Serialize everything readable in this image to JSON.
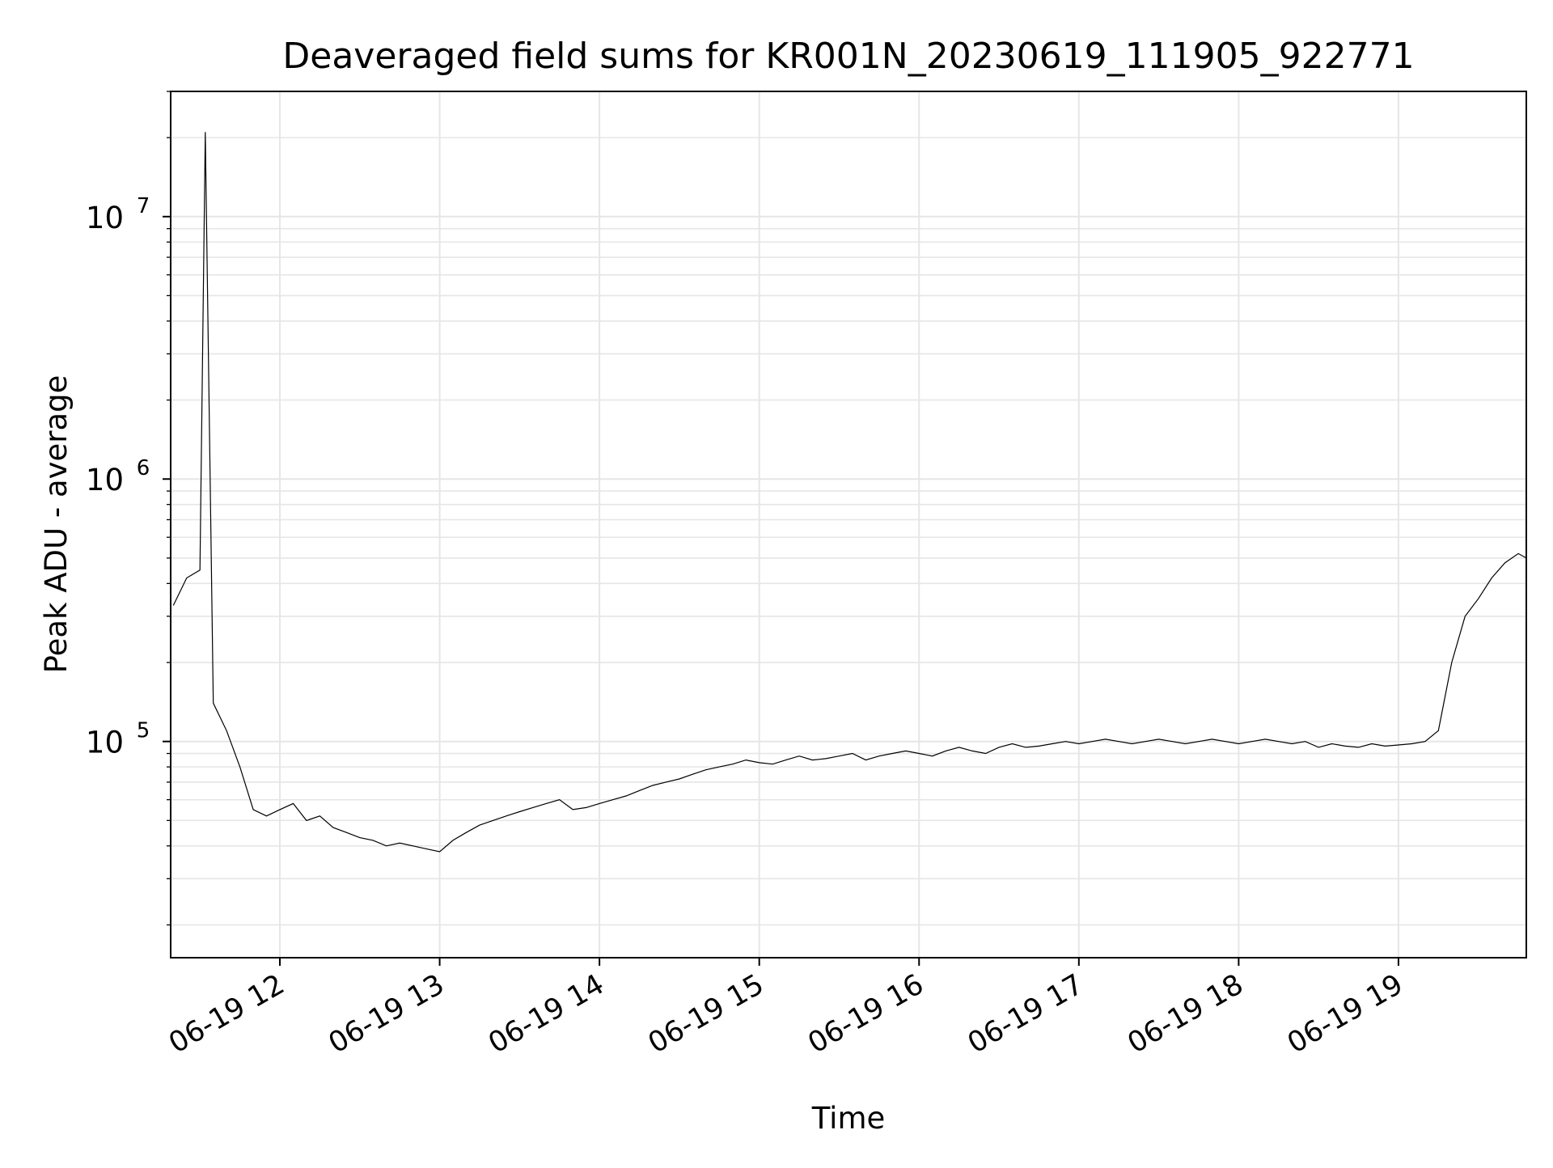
{
  "chart_data": {
    "type": "line",
    "title": "Deaveraged field sums for KR001N_20230619_111905_922771",
    "xlabel": "Time",
    "ylabel": "Peak ADU - average",
    "yscale": "log",
    "ylim": [
      15000,
      30000000
    ],
    "xlim": [
      "2023-06-19 11:19",
      "2023-06-19 19:48"
    ],
    "x_ticks": [
      "06-19 12",
      "06-19 13",
      "06-19 14",
      "06-19 15",
      "06-19 16",
      "06-19 17",
      "06-19 18",
      "06-19 19"
    ],
    "y_ticks": [
      {
        "base": "10",
        "exp": "5",
        "value": 100000
      },
      {
        "base": "10",
        "exp": "6",
        "value": 1000000
      },
      {
        "base": "10",
        "exp": "7",
        "value": 10000000
      }
    ],
    "grid": true,
    "line_color": "#000000",
    "series": [
      {
        "x": [
          "11:20",
          "11:25",
          "11:30",
          "11:32",
          "11:35",
          "11:40",
          "11:45",
          "11:50",
          "11:55",
          "12:00",
          "12:05",
          "12:10",
          "12:15",
          "12:20",
          "12:25",
          "12:30",
          "12:35",
          "12:40",
          "12:45",
          "12:50",
          "12:55",
          "13:00",
          "13:05",
          "13:10",
          "13:15",
          "13:20",
          "13:25",
          "13:30",
          "13:35",
          "13:40",
          "13:45",
          "13:50",
          "13:55",
          "14:00",
          "14:05",
          "14:10",
          "14:15",
          "14:20",
          "14:25",
          "14:30",
          "14:35",
          "14:40",
          "14:45",
          "14:50",
          "14:55",
          "15:00",
          "15:05",
          "15:10",
          "15:15",
          "15:20",
          "15:25",
          "15:30",
          "15:35",
          "15:40",
          "15:45",
          "15:50",
          "15:55",
          "16:00",
          "16:05",
          "16:10",
          "16:15",
          "16:20",
          "16:25",
          "16:30",
          "16:35",
          "16:40",
          "16:45",
          "16:50",
          "16:55",
          "17:00",
          "17:05",
          "17:10",
          "17:15",
          "17:20",
          "17:25",
          "17:30",
          "17:35",
          "17:40",
          "17:45",
          "17:50",
          "17:55",
          "18:00",
          "18:05",
          "18:10",
          "18:15",
          "18:20",
          "18:25",
          "18:30",
          "18:35",
          "18:40",
          "18:45",
          "18:50",
          "18:55",
          "19:00",
          "19:05",
          "19:10",
          "19:15",
          "19:20",
          "19:25",
          "19:30",
          "19:35",
          "19:40",
          "19:45",
          "19:48"
        ],
        "y": [
          330000,
          420000,
          450000,
          21000000,
          140000,
          110000,
          80000,
          55000,
          52000,
          55000,
          58000,
          50000,
          52000,
          47000,
          45000,
          43000,
          42000,
          40000,
          41000,
          40000,
          39000,
          38000,
          42000,
          45000,
          48000,
          50000,
          52000,
          54000,
          56000,
          58000,
          60000,
          55000,
          56000,
          58000,
          60000,
          62000,
          65000,
          68000,
          70000,
          72000,
          75000,
          78000,
          80000,
          82000,
          85000,
          83000,
          82000,
          85000,
          88000,
          85000,
          86000,
          88000,
          90000,
          85000,
          88000,
          90000,
          92000,
          90000,
          88000,
          92000,
          95000,
          92000,
          90000,
          95000,
          98000,
          95000,
          96000,
          98000,
          100000,
          98000,
          100000,
          102000,
          100000,
          98000,
          100000,
          102000,
          100000,
          98000,
          100000,
          102000,
          100000,
          98000,
          100000,
          102000,
          100000,
          98000,
          100000,
          95000,
          98000,
          96000,
          95000,
          98000,
          96000,
          97000,
          98000,
          100000,
          110000,
          200000,
          300000,
          350000,
          420000,
          480000,
          520000,
          500000
        ]
      }
    ]
  }
}
